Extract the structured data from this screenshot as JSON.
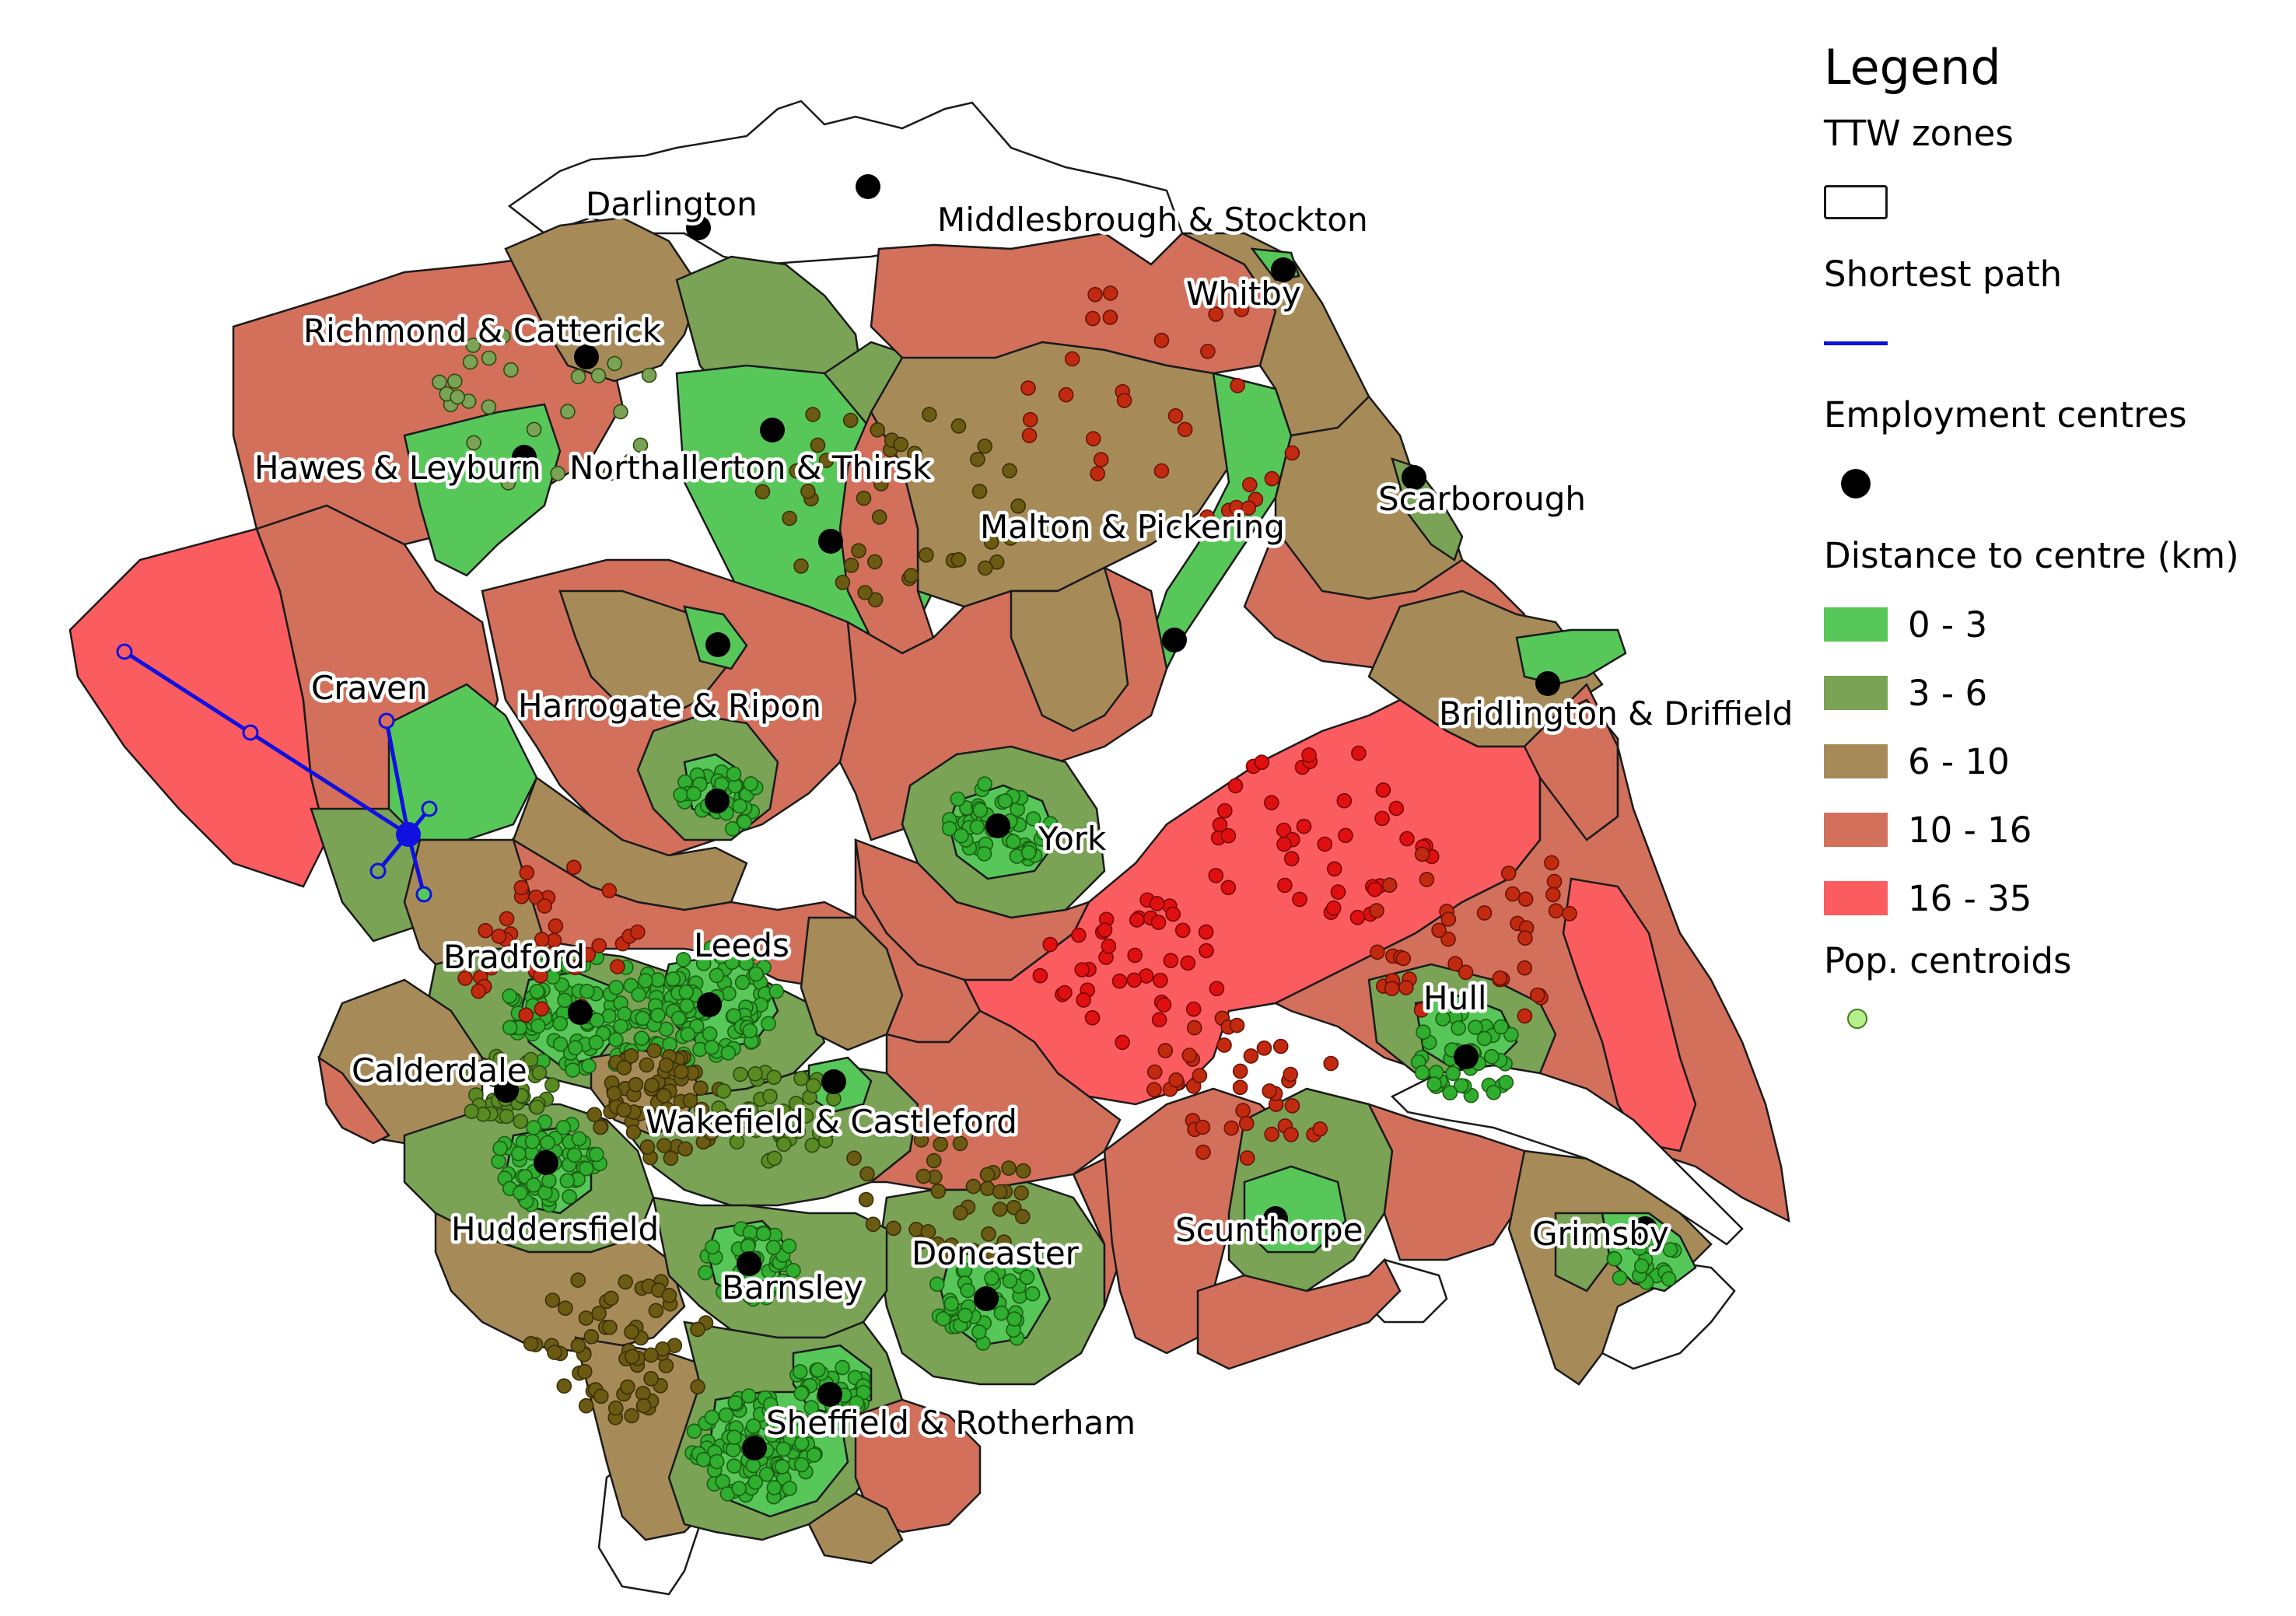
{
  "legend": {
    "title": "Legend",
    "ttw_zones": "TTW zones",
    "shortest_path": "Shortest path",
    "employment_centres": "Employment centres",
    "distance_title": "Distance to centre (km)",
    "classes": [
      {
        "label": "0 - 3",
        "color": "#57c759"
      },
      {
        "label": "3 - 6",
        "color": "#7aa356"
      },
      {
        "label": "6 - 10",
        "color": "#a68b59"
      },
      {
        "label": "10 - 16",
        "color": "#d2705c"
      },
      {
        "label": "16 - 35",
        "color": "#fb5c5f"
      }
    ],
    "pop_centroids": "Pop. centroids"
  },
  "colors": {
    "path": "#1010e0",
    "centre": "#000000",
    "centroid_legend": "#b5f08a",
    "border": "#1a1a1a"
  },
  "places": [
    {
      "id": "darlington",
      "label": "Darlington"
    },
    {
      "id": "middlesbrough",
      "label": "Middlesbrough & Stockton"
    },
    {
      "id": "whitby",
      "label": "Whitby"
    },
    {
      "id": "richmond",
      "label": "Richmond & Catterick"
    },
    {
      "id": "hawes",
      "label": "Hawes & Leyburn"
    },
    {
      "id": "northallerton",
      "label": "Northallerton & Thirsk"
    },
    {
      "id": "scarborough",
      "label": "Scarborough"
    },
    {
      "id": "malton",
      "label": "Malton & Pickering"
    },
    {
      "id": "craven",
      "label": "Craven"
    },
    {
      "id": "harrogate",
      "label": "Harrogate & Ripon"
    },
    {
      "id": "bridlington",
      "label": "Bridlington & Driffield"
    },
    {
      "id": "york",
      "label": "York"
    },
    {
      "id": "bradford",
      "label": "Bradford"
    },
    {
      "id": "leeds",
      "label": "Leeds"
    },
    {
      "id": "hull",
      "label": "Hull"
    },
    {
      "id": "calderdale",
      "label": "Calderdale"
    },
    {
      "id": "wakefield",
      "label": "Wakefield & Castleford"
    },
    {
      "id": "huddersfield",
      "label": "Huddersfield"
    },
    {
      "id": "scunthorpe",
      "label": "Scunthorpe"
    },
    {
      "id": "grimsby",
      "label": "Grimsby"
    },
    {
      "id": "doncaster",
      "label": "Doncaster"
    },
    {
      "id": "barnsley",
      "label": "Barnsley"
    },
    {
      "id": "sheffield",
      "label": "Sheffield & Rotherham"
    }
  ]
}
